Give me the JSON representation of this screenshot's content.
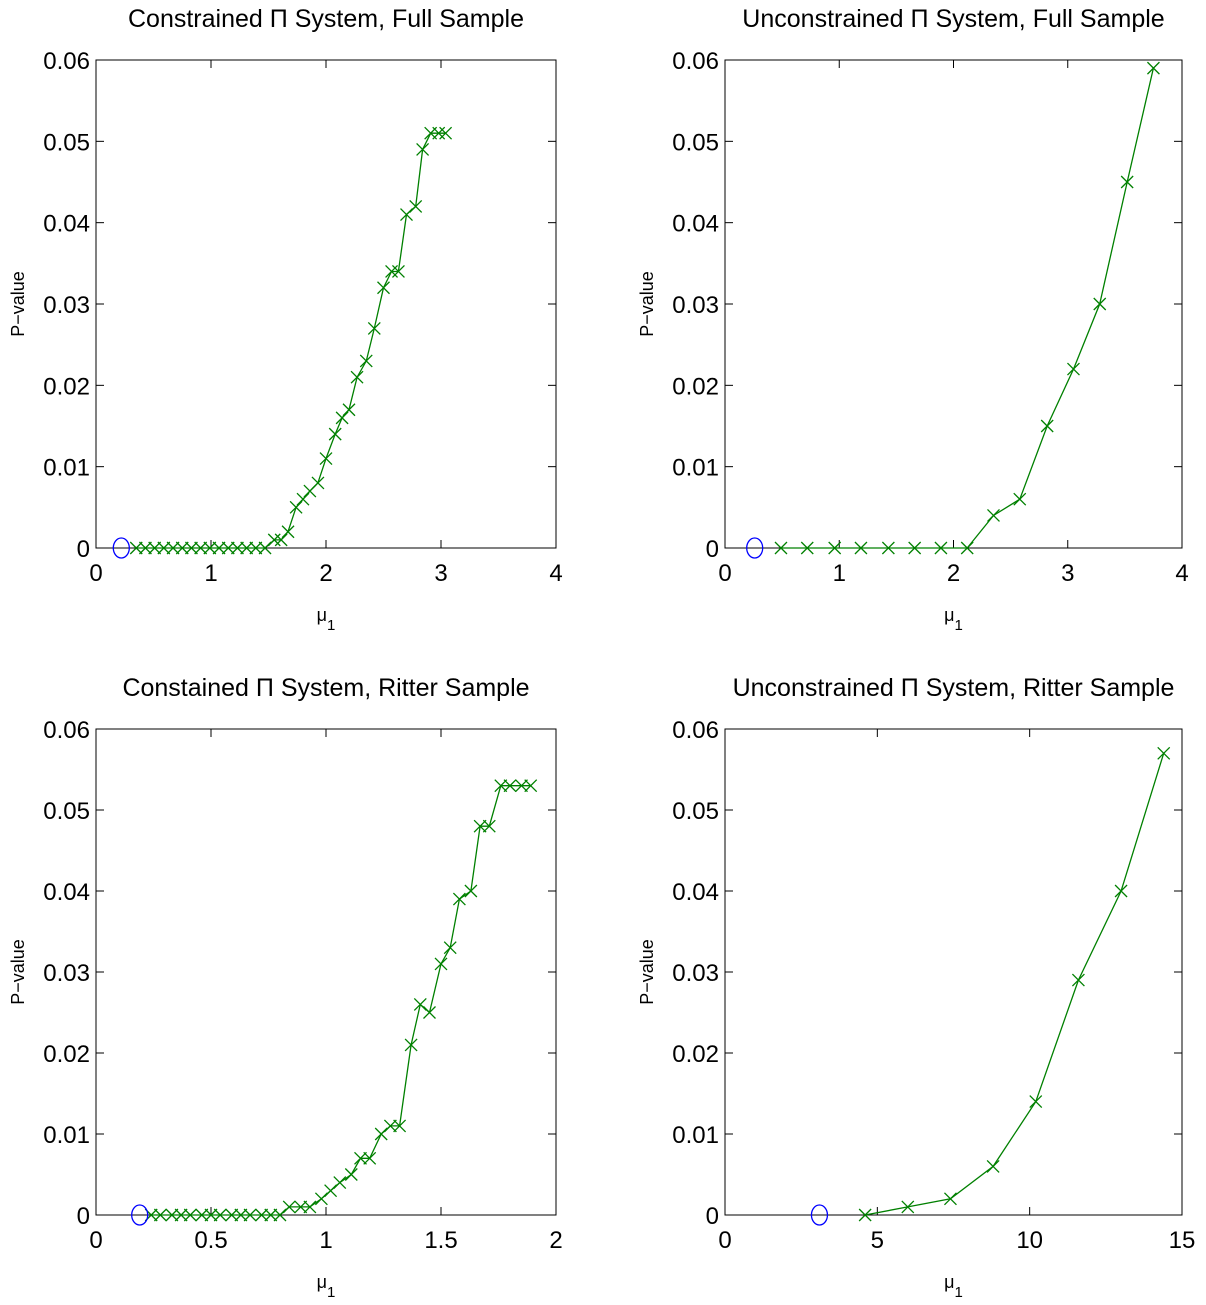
{
  "figure": {
    "background": "#ffffff"
  },
  "colors": {
    "series": "#008000",
    "marker_circle": "#0000ff",
    "axis": "#000000"
  },
  "chart_data": [
    {
      "type": "line",
      "title": "Constrained Π System, Full Sample",
      "xlabel": "μ1",
      "ylabel": "P−value",
      "xlim": [
        0,
        4
      ],
      "ylim": [
        0,
        0.06
      ],
      "xticks": [
        "0",
        "1",
        "2",
        "3",
        "4"
      ],
      "yticks": [
        "0",
        "0.01",
        "0.02",
        "0.03",
        "0.04",
        "0.05",
        "0.06"
      ],
      "circle_point": {
        "x": 0.22,
        "y": 0
      },
      "series": [
        {
          "marker": "x",
          "x": [
            0.35,
            0.43,
            0.51,
            0.59,
            0.67,
            0.75,
            0.83,
            0.91,
            0.99,
            1.07,
            1.15,
            1.23,
            1.31,
            1.39,
            1.47,
            1.55,
            1.61,
            1.67,
            1.74,
            1.8,
            1.86,
            1.93,
            2.0,
            2.08,
            2.14,
            2.2,
            2.27,
            2.35,
            2.42,
            2.5,
            2.57,
            2.63,
            2.7,
            2.78,
            2.84,
            2.91,
            2.98,
            3.04
          ],
          "y": [
            0,
            0,
            0,
            0,
            0,
            0,
            0,
            0,
            0,
            0,
            0,
            0,
            0,
            0,
            0,
            0.001,
            0.001,
            0.002,
            0.005,
            0.006,
            0.007,
            0.008,
            0.011,
            0.014,
            0.016,
            0.017,
            0.021,
            0.023,
            0.027,
            0.032,
            0.034,
            0.034,
            0.041,
            0.042,
            0.049,
            0.051,
            0.051,
            0.051
          ]
        }
      ]
    },
    {
      "type": "line",
      "title": "Unconstrained Π System, Full Sample",
      "xlabel": "μ1",
      "ylabel": "P−value",
      "xlim": [
        0,
        4
      ],
      "ylim": [
        0,
        0.06
      ],
      "xticks": [
        "0",
        "1",
        "2",
        "3",
        "4"
      ],
      "yticks": [
        "0",
        "0.01",
        "0.02",
        "0.03",
        "0.04",
        "0.05",
        "0.06"
      ],
      "circle_point": {
        "x": 0.26,
        "y": 0
      },
      "series": [
        {
          "marker": "x",
          "x": [
            0.49,
            0.72,
            0.96,
            1.19,
            1.43,
            1.66,
            1.89,
            2.12,
            2.35,
            2.58,
            2.82,
            3.05,
            3.28,
            3.52,
            3.75
          ],
          "y": [
            0,
            0,
            0,
            0,
            0,
            0,
            0,
            0,
            0.004,
            0.006,
            0.015,
            0.022,
            0.03,
            0.045,
            0.059
          ]
        }
      ]
    },
    {
      "type": "line",
      "title": "Constained Π System, Ritter Sample",
      "xlabel": "μ1",
      "ylabel": "P−value",
      "xlim": [
        0,
        2
      ],
      "ylim": [
        0,
        0.06
      ],
      "xticks": [
        "0",
        "0.5",
        "1",
        "1.5",
        "2"
      ],
      "yticks": [
        "0",
        "0.01",
        "0.02",
        "0.03",
        "0.04",
        "0.05",
        "0.06"
      ],
      "circle_point": {
        "x": 0.19,
        "y": 0
      },
      "series": [
        {
          "marker": "x",
          "x": [
            0.24,
            0.28,
            0.33,
            0.37,
            0.41,
            0.46,
            0.5,
            0.54,
            0.59,
            0.63,
            0.67,
            0.72,
            0.76,
            0.8,
            0.84,
            0.89,
            0.93,
            0.98,
            1.02,
            1.06,
            1.11,
            1.15,
            1.19,
            1.24,
            1.28,
            1.32,
            1.37,
            1.41,
            1.45,
            1.5,
            1.54,
            1.58,
            1.63,
            1.67,
            1.71,
            1.76,
            1.8,
            1.85,
            1.89
          ],
          "y": [
            0,
            0,
            0,
            0,
            0,
            0,
            0,
            0,
            0,
            0,
            0,
            0,
            0,
            0,
            0.001,
            0.001,
            0.001,
            0.002,
            0.003,
            0.004,
            0.005,
            0.007,
            0.007,
            0.01,
            0.011,
            0.011,
            0.021,
            0.026,
            0.025,
            0.031,
            0.033,
            0.039,
            0.04,
            0.048,
            0.048,
            0.053,
            0.053,
            0.053,
            0.053
          ]
        }
      ]
    },
    {
      "type": "line",
      "title": "Unconstrained Π System, Ritter Sample",
      "xlabel": "μ1",
      "ylabel": "P−value",
      "xlim": [
        0,
        15
      ],
      "ylim": [
        0,
        0.06
      ],
      "xticks": [
        "0",
        "5",
        "10",
        "15"
      ],
      "yticks": [
        "0",
        "0.01",
        "0.02",
        "0.03",
        "0.04",
        "0.05",
        "0.06"
      ],
      "circle_point": {
        "x": 3.1,
        "y": 0
      },
      "series": [
        {
          "marker": "x",
          "x": [
            4.6,
            6.0,
            7.4,
            8.8,
            10.2,
            11.6,
            13.0,
            14.4
          ],
          "y": [
            0,
            0.001,
            0.002,
            0.006,
            0.014,
            0.029,
            0.04,
            0.057
          ]
        }
      ]
    }
  ]
}
